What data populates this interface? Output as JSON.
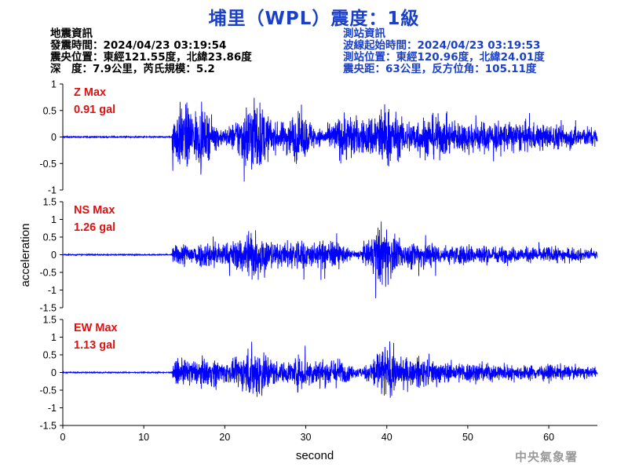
{
  "title": "埔里（WPL）震度：1級",
  "earthquake_info": {
    "header": "地震資訊",
    "origin_time": "發震時間：2024/04/23 03:19:54",
    "epicenter": "震央位置：東經121.55度，北緯23.86度",
    "depth_magnitude": "深　度：7.9公里，芮氏規模：5.2"
  },
  "station_info": {
    "header": "測站資訊",
    "wave_start": "波線起始時間：2024/04/23 03:19:53",
    "location": "測站位置：東經120.96度，北緯24.01度",
    "distance": "震央距：63公里，反方位角：105.11度"
  },
  "agency": "中央氣象署",
  "colors": {
    "title": "#1a3fc8",
    "trace": "#0000ff",
    "max_label": "#e01010",
    "station_info": "#1a3fc8"
  },
  "chart_data": {
    "type": "line",
    "xlabel": "second",
    "ylabel": "acceleration",
    "xlim": [
      0,
      66
    ],
    "xticks": [
      "0",
      "10",
      "20",
      "30",
      "40",
      "50",
      "60"
    ],
    "onset_seconds": 13.5,
    "panels": [
      {
        "component": "Z",
        "max_label": "Z Max",
        "max_value": "0.91 gal",
        "ylim": [
          -1,
          1
        ],
        "yticks": [
          "-1",
          "-0.5",
          "0",
          "0.5",
          "1"
        ]
      },
      {
        "component": "NS",
        "max_label": "NS Max",
        "max_value": "1.26 gal",
        "ylim": [
          -1.5,
          1.5
        ],
        "yticks": [
          "-1.5",
          "-1",
          "-0.5",
          "0",
          "0.5",
          "1",
          "1.5"
        ]
      },
      {
        "component": "EW",
        "max_label": "EW Max",
        "max_value": "1.13 gal",
        "ylim": [
          -1.5,
          1.5
        ],
        "yticks": [
          "-1.5",
          "-1",
          "-0.5",
          "0",
          "0.5",
          "1",
          "1.5"
        ]
      }
    ]
  }
}
